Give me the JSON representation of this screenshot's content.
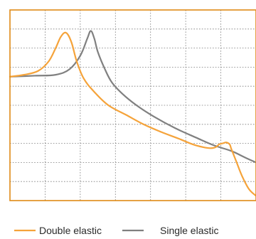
{
  "chart_data": {
    "type": "line",
    "title": "",
    "xlabel": "",
    "ylabel": "",
    "xlim": [
      0,
      7
    ],
    "ylim": [
      0,
      10
    ],
    "grid": true,
    "x_gridlines": [
      1,
      2,
      3,
      4,
      5,
      6
    ],
    "y_gridlines": [
      1,
      2,
      3,
      4,
      5,
      6,
      7,
      8,
      9
    ],
    "legend_position": "bottom",
    "series": [
      {
        "name": "Double elastic",
        "color": "#f5a33a",
        "x": [
          0.0,
          0.4,
          0.8,
          1.1,
          1.3,
          1.45,
          1.6,
          1.75,
          1.9,
          2.1,
          2.4,
          2.8,
          3.3,
          3.8,
          4.3,
          4.8,
          5.2,
          5.5,
          5.7,
          5.85,
          5.95,
          6.05,
          6.15,
          6.25,
          6.3,
          6.45,
          6.6,
          6.8,
          7.0
        ],
        "y": [
          6.5,
          6.6,
          6.8,
          7.3,
          8.0,
          8.6,
          8.8,
          8.3,
          7.3,
          6.4,
          5.7,
          5.0,
          4.5,
          4.0,
          3.6,
          3.25,
          2.95,
          2.8,
          2.75,
          2.8,
          2.95,
          3.0,
          3.05,
          2.95,
          2.7,
          2.0,
          1.3,
          0.6,
          0.25
        ]
      },
      {
        "name": "Single elastic",
        "color": "#808080",
        "x": [
          0.0,
          0.7,
          1.3,
          1.7,
          2.0,
          2.2,
          2.3,
          2.4,
          2.5,
          2.7,
          2.9,
          3.2,
          3.6,
          4.1,
          4.7,
          5.3,
          5.8,
          6.3,
          6.7,
          7.0
        ],
        "y": [
          6.5,
          6.55,
          6.6,
          6.9,
          7.6,
          8.5,
          8.9,
          8.5,
          7.8,
          6.9,
          6.2,
          5.6,
          5.0,
          4.4,
          3.8,
          3.3,
          2.9,
          2.6,
          2.25,
          2.0
        ]
      }
    ]
  }
}
